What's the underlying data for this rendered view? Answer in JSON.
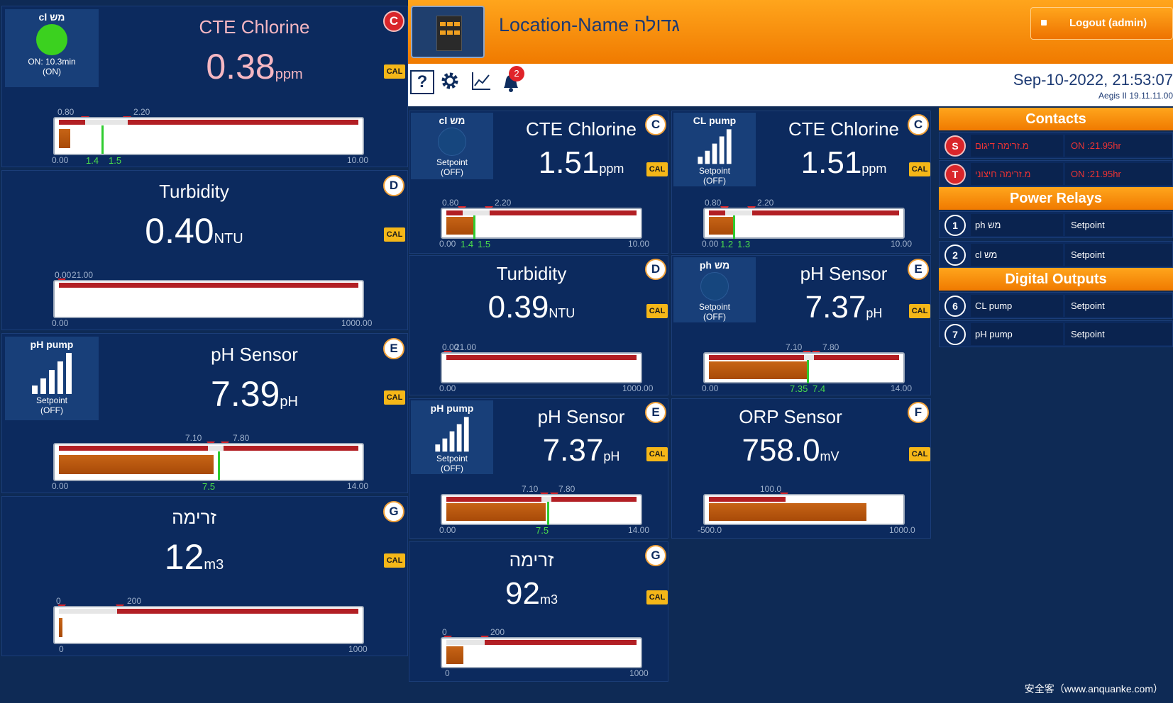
{
  "header": {
    "location": "Location-Name גדולה",
    "logout_label": "Logout (admin)",
    "datetime": "Sep-10-2022, 21:53:07",
    "version": "Aegis II 19.11.11.00",
    "alarm_count": "2",
    "help_label": "?"
  },
  "left_panels": [
    {
      "title": "CTE Chlorine",
      "value": "0.38",
      "unit": "ppm",
      "badge": "C",
      "cal": "CAL",
      "device": {
        "name": "cl מש",
        "state1": "ON: 10.3min",
        "state2": "(ON)"
      },
      "ticks": {
        "min": "0.00",
        "max": "10.00",
        "lo": "0.80",
        "hi": "2.20",
        "n1": "1.4",
        "n2": "1.5"
      }
    },
    {
      "title": "Turbidity",
      "value": "0.40",
      "unit": "NTU",
      "badge": "D",
      "cal": "CAL",
      "ticks": {
        "min": "0.00",
        "max": "1000.00",
        "lo": "0.00",
        "hi": "21.00"
      }
    },
    {
      "title": "pH Sensor",
      "value": "7.39",
      "unit": "pH",
      "badge": "E",
      "cal": "CAL",
      "device": {
        "name": "pH pump",
        "state1": "Setpoint",
        "state2": "(OFF)"
      },
      "ticks": {
        "min": "0.00",
        "max": "14.00",
        "lo": "7.10",
        "hi": "7.80",
        "n1": "7.5"
      }
    },
    {
      "title": "זרימה",
      "value": "12",
      "unit": "m3",
      "badge": "G",
      "cal": "CAL",
      "ticks": {
        "min": "0",
        "max": "1000",
        "lo": "0",
        "hi": "200"
      }
    }
  ],
  "main_panels": [
    {
      "title": "CTE Chlorine",
      "value": "1.51",
      "unit": "ppm",
      "badge": "C",
      "cal": "CAL",
      "device": {
        "name": "cl מש",
        "state1": "Setpoint",
        "state2": "(OFF)"
      },
      "ticks": {
        "min": "0.00",
        "max": "10.00",
        "lo": "0.80",
        "hi": "2.20",
        "n1": "1.4",
        "n2": "1.5"
      }
    },
    {
      "title": "CTE Chlorine",
      "value": "1.51",
      "unit": "ppm",
      "badge": "C",
      "cal": "CAL",
      "device": {
        "name": "CL pump",
        "state1": "Setpoint",
        "state2": "(OFF)"
      },
      "ticks": {
        "min": "0.00",
        "max": "10.00",
        "lo": "0.80",
        "hi": "2.20",
        "n1": "1.2",
        "n2": "1.3"
      }
    },
    {
      "title": "Turbidity",
      "value": "0.39",
      "unit": "NTU",
      "badge": "D",
      "cal": "CAL",
      "ticks": {
        "min": "0.00",
        "max": "1000.00",
        "lo": "0.00",
        "hi": "21.00"
      }
    },
    {
      "title": "pH Sensor",
      "value": "7.37",
      "unit": "pH",
      "badge": "E",
      "cal": "CAL",
      "device": {
        "name": "ph מש",
        "state1": "Setpoint",
        "state2": "(OFF)"
      },
      "ticks": {
        "min": "0.00",
        "max": "14.00",
        "lo": "7.10",
        "hi": "7.80",
        "n1": "7.35",
        "n2": "7.4"
      }
    },
    {
      "title": "pH Sensor",
      "value": "7.37",
      "unit": "pH",
      "badge": "E",
      "cal": "CAL",
      "device": {
        "name": "pH pump",
        "state1": "Setpoint",
        "state2": "(OFF)"
      },
      "ticks": {
        "min": "0.00",
        "max": "14.00",
        "lo": "7.10",
        "hi": "7.80",
        "n1": "7.5"
      }
    },
    {
      "title": "ORP Sensor",
      "value": "758.0",
      "unit": "mV",
      "badge": "F",
      "cal": "CAL",
      "ticks": {
        "min": "-500.0",
        "max": "1000.0",
        "lo": "100.0"
      }
    },
    {
      "title": "זרימה",
      "value": "92",
      "unit": "m3",
      "badge": "G",
      "cal": "CAL",
      "ticks": {
        "min": "0",
        "max": "1000",
        "lo": "0",
        "hi": "200"
      }
    }
  ],
  "contacts": {
    "title": "Contacts",
    "items": [
      {
        "id": "S",
        "name": "מ.זרימה דיגום",
        "status": "ON :21.95hr"
      },
      {
        "id": "T",
        "name": "מ.זרימה חיצוני",
        "status": "ON :21.95hr"
      }
    ]
  },
  "power_relays": {
    "title": "Power Relays",
    "items": [
      {
        "id": "1",
        "name": "ph מש",
        "status": "Setpoint"
      },
      {
        "id": "2",
        "name": "cl מש",
        "status": "Setpoint"
      }
    ]
  },
  "digital_outputs": {
    "title": "Digital Outputs",
    "items": [
      {
        "id": "6",
        "name": "CL pump",
        "status": "Setpoint"
      },
      {
        "id": "7",
        "name": "pH pump",
        "status": "Setpoint"
      }
    ]
  },
  "watermark": "安全客（www.anquanke.com）",
  "colors": {
    "orange": "#f07a00",
    "panel": "#0c2a5e",
    "alarm_red": "#d9252a",
    "ok_green": "#2fcc2f"
  }
}
